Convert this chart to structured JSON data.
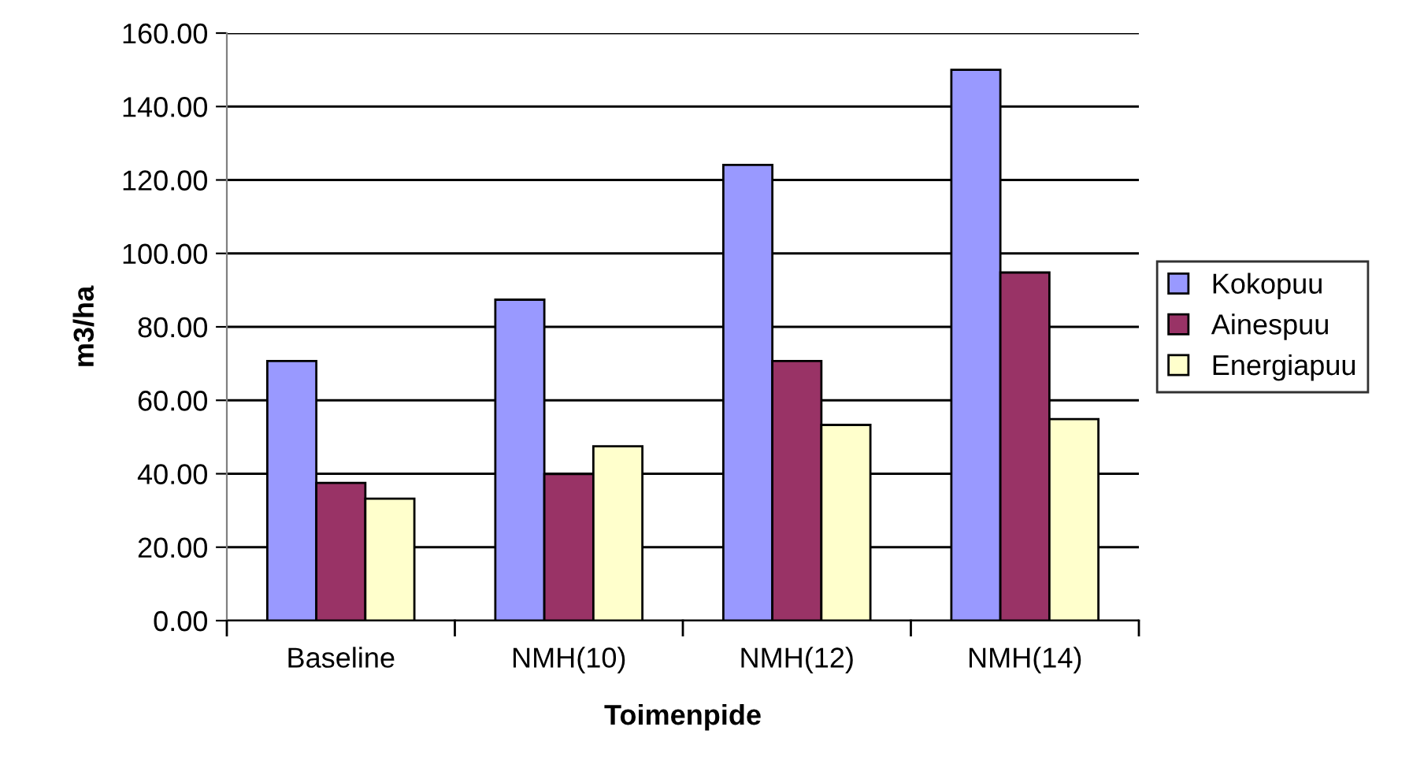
{
  "chart_data": {
    "type": "bar",
    "xlabel": "Toimenpide",
    "ylabel": "m3/ha",
    "categories": [
      "Baseline",
      "NMH(10)",
      "NMH(12)",
      "NMH(14)"
    ],
    "series": [
      {
        "name": "Kokopuu",
        "color": "#9999ff",
        "values": [
          70.7,
          87.4,
          124.1,
          150.0
        ]
      },
      {
        "name": "Ainespuu",
        "color": "#993366",
        "values": [
          37.5,
          39.9,
          70.7,
          94.8
        ]
      },
      {
        "name": "Energiapuu",
        "color": "#ffffcc",
        "values": [
          33.2,
          47.5,
          53.3,
          54.9
        ]
      }
    ],
    "ylim": [
      0,
      160
    ],
    "yticks": [
      {
        "value": 0,
        "label": "0.00"
      },
      {
        "value": 20,
        "label": "20.00"
      },
      {
        "value": 40,
        "label": "40.00"
      },
      {
        "value": 60,
        "label": "60.00"
      },
      {
        "value": 80,
        "label": "80.00"
      },
      {
        "value": 100,
        "label": "100.00"
      },
      {
        "value": 120,
        "label": "120.00"
      },
      {
        "value": 140,
        "label": "140.00"
      },
      {
        "value": 160,
        "label": "160.00"
      }
    ],
    "grid": "y",
    "legend": "right"
  }
}
